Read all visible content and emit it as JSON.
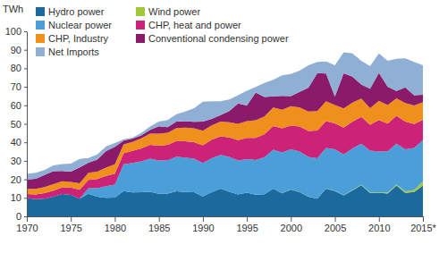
{
  "chart_data": {
    "type": "area",
    "stacked": true,
    "y_label": "TWh",
    "x": [
      1970,
      1971,
      1972,
      1973,
      1974,
      1975,
      1976,
      1977,
      1978,
      1979,
      1980,
      1981,
      1982,
      1983,
      1984,
      1985,
      1986,
      1987,
      1988,
      1989,
      1990,
      1991,
      1992,
      1993,
      1994,
      1995,
      1996,
      1997,
      1998,
      1999,
      2000,
      2001,
      2002,
      2003,
      2004,
      2005,
      2006,
      2007,
      2008,
      2009,
      2010,
      2011,
      2012,
      2013,
      2014,
      2015
    ],
    "xlim": [
      1970,
      2015
    ],
    "xticks": [
      1970,
      1975,
      1980,
      1985,
      1990,
      1995,
      2000,
      2005,
      2010,
      {
        "value": 2015,
        "label": "2015*"
      }
    ],
    "ylim": [
      0,
      100
    ],
    "yticks": [
      0,
      10,
      20,
      30,
      40,
      50,
      60,
      70,
      80,
      90,
      100
    ],
    "grid": false,
    "legend": "top-left",
    "series": [
      {
        "name": "Hydro power",
        "color": "#1b6a9e",
        "values": [
          9.9,
          9.3,
          9.6,
          10.6,
          12.1,
          11.6,
          9.6,
          12.2,
          10.6,
          10.0,
          10.1,
          13.7,
          12.9,
          13.0,
          13.3,
          12.2,
          12.3,
          13.5,
          13.2,
          13.0,
          10.8,
          13.0,
          15.0,
          13.3,
          11.8,
          12.8,
          11.7,
          12.0,
          15.0,
          12.5,
          14.5,
          13.0,
          10.6,
          9.5,
          15.0,
          13.6,
          11.3,
          14.0,
          16.9,
          12.6,
          12.8,
          12.3,
          16.7,
          12.7,
          13.2,
          16.6
        ]
      },
      {
        "name": "Wind power",
        "color": "#a2c83a",
        "values": [
          0,
          0,
          0,
          0,
          0,
          0,
          0,
          0,
          0,
          0,
          0,
          0,
          0,
          0,
          0,
          0,
          0,
          0,
          0,
          0,
          0,
          0,
          0,
          0,
          0,
          0,
          0,
          0,
          0,
          0,
          0.1,
          0.1,
          0.1,
          0.1,
          0.1,
          0.2,
          0.2,
          0.2,
          0.3,
          0.3,
          0.3,
          0.5,
          0.5,
          0.8,
          1.1,
          2.3
        ]
      },
      {
        "name": "Nuclear power",
        "color": "#4a9fd8",
        "values": [
          0,
          0,
          0,
          0,
          0,
          0,
          0,
          3.0,
          4.6,
          6.3,
          7.0,
          14.4,
          16.0,
          16.7,
          17.9,
          18.0,
          18.0,
          18.7,
          18.6,
          18.1,
          18.1,
          18.4,
          18.2,
          18.8,
          18.4,
          18.1,
          18.7,
          20.0,
          21.0,
          22.1,
          21.6,
          21.9,
          21.4,
          21.8,
          21.8,
          22.4,
          22.0,
          22.5,
          22.0,
          22.6,
          21.9,
          22.3,
          22.1,
          22.7,
          22.6,
          22.3
        ]
      },
      {
        "name": "CHP, heat and power",
        "color": "#cc2277",
        "values": [
          2.2,
          2.5,
          3.0,
          3.3,
          3.5,
          4.0,
          4.8,
          4.5,
          5.0,
          5.5,
          6.0,
          6.0,
          6.5,
          7.0,
          7.5,
          8.0,
          8.3,
          8.5,
          8.8,
          9.0,
          9.5,
          10.0,
          10.0,
          10.5,
          11.0,
          11.5,
          12.0,
          12.5,
          12.8,
          13.0,
          12.8,
          13.5,
          14.0,
          15.0,
          14.5,
          14.0,
          14.5,
          14.5,
          14.5,
          14.0,
          17.0,
          15.0,
          15.0,
          15.0,
          13.0,
          11.0
        ]
      },
      {
        "name": "CHP, Industry",
        "color": "#f0901c",
        "values": [
          2.8,
          3.0,
          3.2,
          3.5,
          3.4,
          3.0,
          3.5,
          3.8,
          4.0,
          4.5,
          5.0,
          4.8,
          4.8,
          5.5,
          6.0,
          6.5,
          6.6,
          7.0,
          7.3,
          7.5,
          7.8,
          7.8,
          8.0,
          8.3,
          8.8,
          9.0,
          9.5,
          9.5,
          10.0,
          10.0,
          10.5,
          10.3,
          10.5,
          10.5,
          10.8,
          10.0,
          10.3,
          10.3,
          10.0,
          9.0,
          10.5,
          10.0,
          9.5,
          10.0,
          10.0,
          9.5
        ]
      },
      {
        "name": "Conventional condensing power",
        "color": "#8a1a6a",
        "values": [
          5.0,
          5.5,
          6.5,
          7.0,
          5.5,
          5.5,
          8.5,
          5.5,
          6.5,
          9.0,
          9.5,
          2.0,
          1.8,
          1.5,
          2.0,
          4.0,
          3.0,
          3.5,
          3.5,
          3.5,
          5.0,
          3.5,
          3.5,
          6.0,
          11.0,
          8.5,
          15.0,
          10.5,
          6.0,
          7.5,
          5.5,
          8.5,
          13.0,
          20.5,
          15.0,
          4.5,
          19.0,
          14.0,
          7.5,
          10.5,
          15.0,
          10.0,
          4.0,
          8.5,
          5.5,
          4.0
        ]
      },
      {
        "name": "Net Imports",
        "color": "#8fb0d4",
        "values": [
          3.1,
          3.2,
          2.7,
          3.1,
          3.8,
          4.4,
          4.6,
          2.5,
          2.8,
          2.5,
          2.0,
          0.8,
          0.5,
          1.3,
          1.8,
          2.5,
          3.8,
          4.0,
          5.2,
          7.3,
          10.7,
          9.5,
          7.5,
          6.3,
          4.5,
          8.0,
          3.0,
          7.6,
          9.0,
          11.1,
          11.9,
          11.5,
          12.0,
          6.0,
          6.5,
          17.0,
          11.4,
          12.6,
          12.8,
          12.1,
          10.5,
          13.9,
          17.4,
          15.7,
          18.1,
          16.0
        ]
      }
    ]
  }
}
